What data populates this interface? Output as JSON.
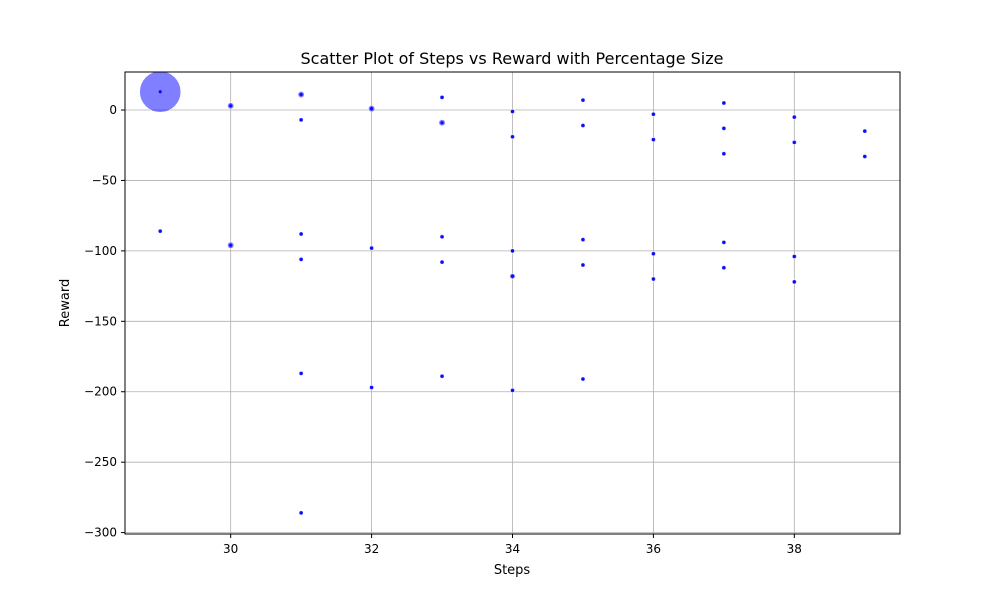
{
  "chart_data": {
    "type": "scatter",
    "title": "Scatter Plot of Steps vs Reward with Percentage Size",
    "xlabel": "Steps",
    "ylabel": "Reward",
    "xlim": [
      28.5,
      39.5
    ],
    "ylim": [
      -301,
      27
    ],
    "xticks": [
      30,
      32,
      34,
      36,
      38
    ],
    "yticks": [
      0,
      -50,
      -100,
      -150,
      -200,
      -250,
      -300
    ],
    "xtick_labels": [
      "30",
      "32",
      "34",
      "36",
      "38"
    ],
    "ytick_labels": [
      "0",
      "−50",
      "−100",
      "−150",
      "−200",
      "−250",
      "−300"
    ],
    "grid": true,
    "colors": {
      "fill": "#0000ff",
      "grid": "#b0b0b0",
      "spine": "#000000"
    },
    "points": [
      {
        "x": 29,
        "y": 13,
        "size": 30
      },
      {
        "x": 29,
        "y": -86,
        "size": 1
      },
      {
        "x": 30,
        "y": 3,
        "size": 2
      },
      {
        "x": 30,
        "y": -96,
        "size": 2
      },
      {
        "x": 31,
        "y": 11,
        "size": 2
      },
      {
        "x": 31,
        "y": -7,
        "size": 1
      },
      {
        "x": 31,
        "y": -88,
        "size": 1
      },
      {
        "x": 31,
        "y": -106,
        "size": 1
      },
      {
        "x": 31,
        "y": -187,
        "size": 1
      },
      {
        "x": 31,
        "y": -286,
        "size": 1
      },
      {
        "x": 32,
        "y": 1,
        "size": 2
      },
      {
        "x": 32,
        "y": -98,
        "size": 1
      },
      {
        "x": 32,
        "y": -197,
        "size": 1
      },
      {
        "x": 33,
        "y": 9,
        "size": 1
      },
      {
        "x": 33,
        "y": -9,
        "size": 2
      },
      {
        "x": 33,
        "y": -90,
        "size": 1
      },
      {
        "x": 33,
        "y": -108,
        "size": 1
      },
      {
        "x": 33,
        "y": -189,
        "size": 1
      },
      {
        "x": 34,
        "y": -1,
        "size": 1
      },
      {
        "x": 34,
        "y": -19,
        "size": 1
      },
      {
        "x": 34,
        "y": -100,
        "size": 1
      },
      {
        "x": 34,
        "y": -118,
        "size": 1.5
      },
      {
        "x": 34,
        "y": -199,
        "size": 1
      },
      {
        "x": 35,
        "y": 7,
        "size": 1
      },
      {
        "x": 35,
        "y": -11,
        "size": 1
      },
      {
        "x": 35,
        "y": -92,
        "size": 1
      },
      {
        "x": 35,
        "y": -110,
        "size": 1
      },
      {
        "x": 35,
        "y": -191,
        "size": 1
      },
      {
        "x": 36,
        "y": -3,
        "size": 1
      },
      {
        "x": 36,
        "y": -21,
        "size": 1
      },
      {
        "x": 36,
        "y": -102,
        "size": 1
      },
      {
        "x": 36,
        "y": -120,
        "size": 1
      },
      {
        "x": 37,
        "y": 5,
        "size": 1
      },
      {
        "x": 37,
        "y": -13,
        "size": 1
      },
      {
        "x": 37,
        "y": -31,
        "size": 1
      },
      {
        "x": 37,
        "y": -94,
        "size": 1
      },
      {
        "x": 37,
        "y": -112,
        "size": 1
      },
      {
        "x": 38,
        "y": -5,
        "size": 1
      },
      {
        "x": 38,
        "y": -23,
        "size": 1
      },
      {
        "x": 38,
        "y": -104,
        "size": 1
      },
      {
        "x": 38,
        "y": -122,
        "size": 1
      },
      {
        "x": 39,
        "y": -15,
        "size": 1
      },
      {
        "x": 39,
        "y": -33,
        "size": 1
      }
    ]
  }
}
